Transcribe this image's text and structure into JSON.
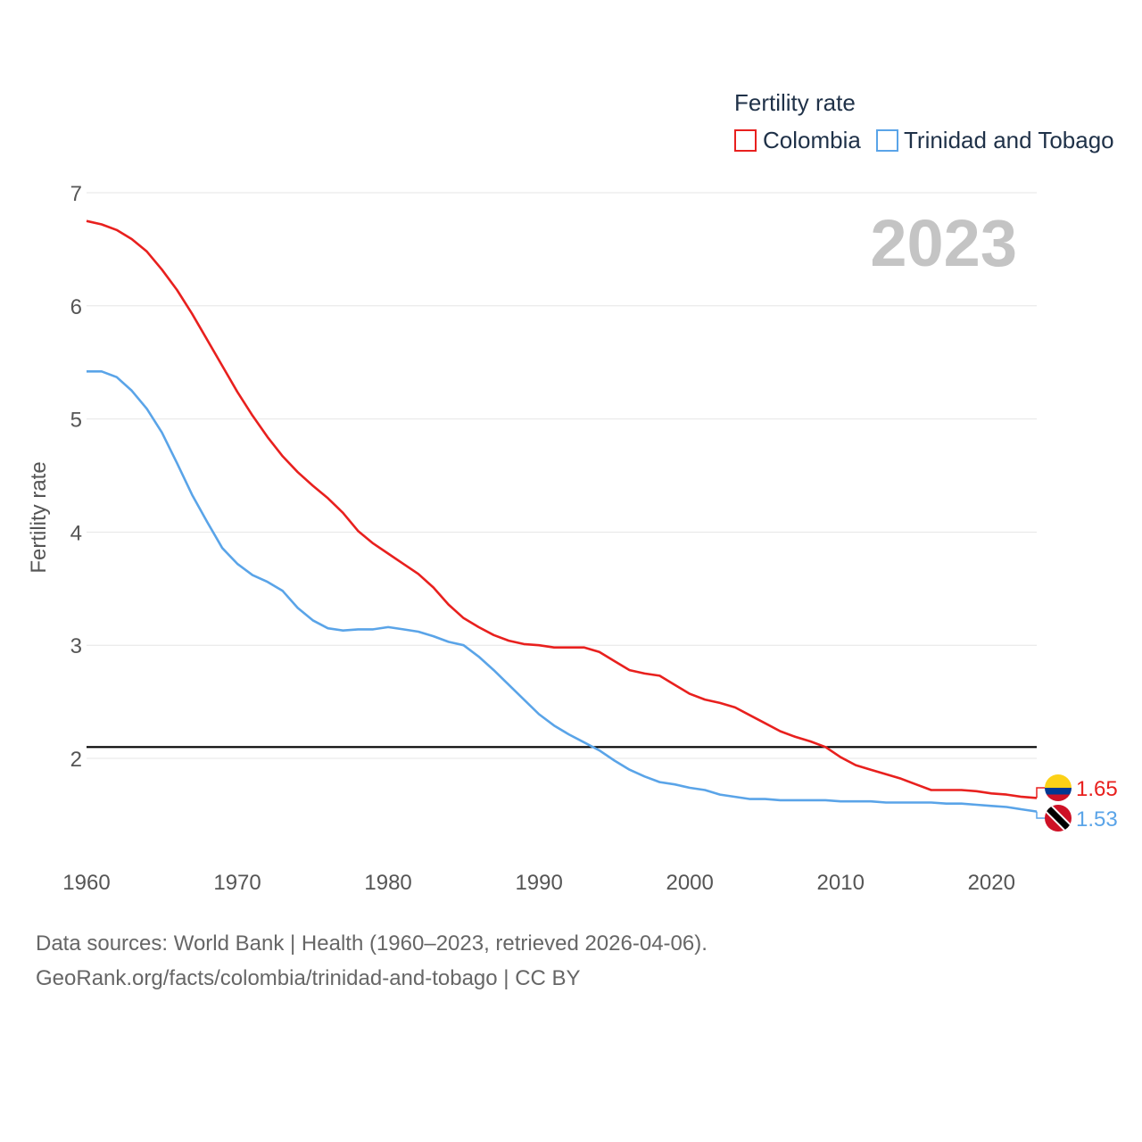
{
  "chart_data": {
    "type": "line",
    "ylabel": "Fertility rate",
    "xlabel": "",
    "ylim": [
      1,
      7
    ],
    "xlim": [
      1960,
      2023
    ],
    "yticks": [
      2,
      3,
      4,
      5,
      6,
      7
    ],
    "xticks": [
      1960,
      1970,
      1980,
      1990,
      2000,
      2010,
      2020
    ],
    "year_label": "2023",
    "legend": {
      "title": "Fertility rate",
      "placement": "top-right"
    },
    "reference_line": {
      "y": 2.1,
      "color": "#000000"
    },
    "series": [
      {
        "name": "Colombia",
        "color": "#e8201e",
        "end_label": "1.65",
        "flag": "colombia-flag",
        "x": [
          1960,
          1961,
          1962,
          1963,
          1964,
          1965,
          1966,
          1967,
          1968,
          1969,
          1970,
          1971,
          1972,
          1973,
          1974,
          1975,
          1976,
          1977,
          1978,
          1979,
          1980,
          1981,
          1982,
          1983,
          1984,
          1985,
          1986,
          1987,
          1988,
          1989,
          1990,
          1991,
          1992,
          1993,
          1994,
          1995,
          1996,
          1997,
          1998,
          1999,
          2000,
          2001,
          2002,
          2003,
          2004,
          2005,
          2006,
          2007,
          2008,
          2009,
          2010,
          2011,
          2012,
          2013,
          2014,
          2015,
          2016,
          2017,
          2018,
          2019,
          2020,
          2021,
          2022,
          2023
        ],
        "values": [
          6.75,
          6.72,
          6.67,
          6.59,
          6.48,
          6.32,
          6.14,
          5.93,
          5.7,
          5.47,
          5.24,
          5.03,
          4.84,
          4.67,
          4.53,
          4.41,
          4.3,
          4.17,
          4.01,
          3.9,
          3.81,
          3.72,
          3.63,
          3.51,
          3.36,
          3.24,
          3.16,
          3.09,
          3.04,
          3.01,
          3.0,
          2.98,
          2.98,
          2.98,
          2.94,
          2.86,
          2.78,
          2.75,
          2.73,
          2.65,
          2.57,
          2.52,
          2.49,
          2.45,
          2.38,
          2.31,
          2.24,
          2.19,
          2.15,
          2.1,
          2.01,
          1.94,
          1.9,
          1.86,
          1.82,
          1.77,
          1.72,
          1.72,
          1.72,
          1.71,
          1.69,
          1.68,
          1.66,
          1.65
        ]
      },
      {
        "name": "Trinidad and Tobago",
        "color": "#5aa4e8",
        "end_label": "1.53",
        "flag": "trinidad-and-tobago-flag",
        "x": [
          1960,
          1961,
          1962,
          1963,
          1964,
          1965,
          1966,
          1967,
          1968,
          1969,
          1970,
          1971,
          1972,
          1973,
          1974,
          1975,
          1976,
          1977,
          1978,
          1979,
          1980,
          1981,
          1982,
          1983,
          1984,
          1985,
          1986,
          1987,
          1988,
          1989,
          1990,
          1991,
          1992,
          1993,
          1994,
          1995,
          1996,
          1997,
          1998,
          1999,
          2000,
          2001,
          2002,
          2003,
          2004,
          2005,
          2006,
          2007,
          2008,
          2009,
          2010,
          2011,
          2012,
          2013,
          2014,
          2015,
          2016,
          2017,
          2018,
          2019,
          2020,
          2021,
          2022,
          2023
        ],
        "values": [
          5.42,
          5.42,
          5.37,
          5.25,
          5.09,
          4.88,
          4.61,
          4.33,
          4.09,
          3.86,
          3.72,
          3.62,
          3.56,
          3.48,
          3.33,
          3.22,
          3.15,
          3.13,
          3.14,
          3.14,
          3.16,
          3.14,
          3.12,
          3.08,
          3.03,
          3.0,
          2.9,
          2.78,
          2.65,
          2.52,
          2.39,
          2.29,
          2.21,
          2.14,
          2.07,
          1.98,
          1.9,
          1.84,
          1.79,
          1.77,
          1.74,
          1.72,
          1.68,
          1.66,
          1.64,
          1.64,
          1.63,
          1.63,
          1.63,
          1.63,
          1.62,
          1.62,
          1.62,
          1.61,
          1.61,
          1.61,
          1.61,
          1.6,
          1.6,
          1.59,
          1.58,
          1.57,
          1.55,
          1.53
        ]
      }
    ]
  },
  "source": {
    "line1": "Data sources: World Bank | Health (1960–2023, retrieved 2026-04-06).",
    "line2": "GeoRank.org/facts/colombia/trinidad-and-tobago | CC BY"
  }
}
